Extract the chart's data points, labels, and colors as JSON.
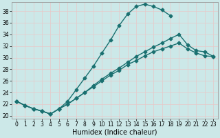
{
  "xlabel": "Humidex (Indice chaleur)",
  "bg_color": "#cce8e8",
  "line_color": "#1a7070",
  "xlim": [
    -0.5,
    23.5
  ],
  "ylim": [
    19.5,
    39.5
  ],
  "yticks": [
    20,
    22,
    24,
    26,
    28,
    30,
    32,
    34,
    36,
    38
  ],
  "xticks": [
    0,
    1,
    2,
    3,
    4,
    5,
    6,
    7,
    8,
    9,
    10,
    11,
    12,
    13,
    14,
    15,
    16,
    17,
    18,
    19,
    20,
    21,
    22,
    23
  ],
  "line1_x": [
    0,
    1,
    2,
    3,
    4,
    5,
    6,
    7,
    8,
    9,
    10,
    11,
    12,
    13,
    14,
    15,
    16,
    17,
    18
  ],
  "line1_y": [
    22.5,
    21.8,
    21.2,
    20.8,
    20.3,
    21.2,
    22.5,
    24.5,
    26.5,
    28.5,
    30.8,
    33.0,
    35.5,
    37.5,
    38.8,
    39.2,
    38.8,
    38.2,
    37.2
  ],
  "line2_x": [
    0,
    1,
    2,
    3,
    4,
    5,
    6,
    7,
    8,
    9,
    10,
    11,
    12,
    13,
    14,
    15,
    16,
    17,
    18,
    19,
    20,
    21,
    22,
    23
  ],
  "line2_y": [
    22.5,
    21.8,
    21.2,
    20.8,
    20.3,
    21.2,
    22.0,
    23.0,
    24.0,
    25.2,
    26.3,
    27.3,
    28.2,
    29.2,
    30.2,
    31.0,
    31.8,
    32.5,
    33.3,
    34.0,
    32.2,
    31.2,
    31.0,
    30.2
  ],
  "line3_x": [
    0,
    1,
    2,
    3,
    4,
    5,
    6,
    7,
    8,
    9,
    10,
    11,
    12,
    13,
    14,
    15,
    16,
    17,
    18,
    19,
    20,
    21,
    22,
    23
  ],
  "line3_y": [
    22.5,
    21.8,
    21.2,
    20.8,
    20.3,
    21.2,
    22.0,
    23.0,
    24.0,
    25.0,
    26.0,
    27.0,
    27.8,
    28.8,
    29.5,
    30.3,
    31.0,
    31.5,
    32.0,
    32.5,
    31.5,
    30.8,
    30.3,
    30.2
  ],
  "marker": "D",
  "markersize": 2.5,
  "linewidth": 1.0,
  "tick_fontsize": 5.5,
  "label_fontsize": 7.0
}
